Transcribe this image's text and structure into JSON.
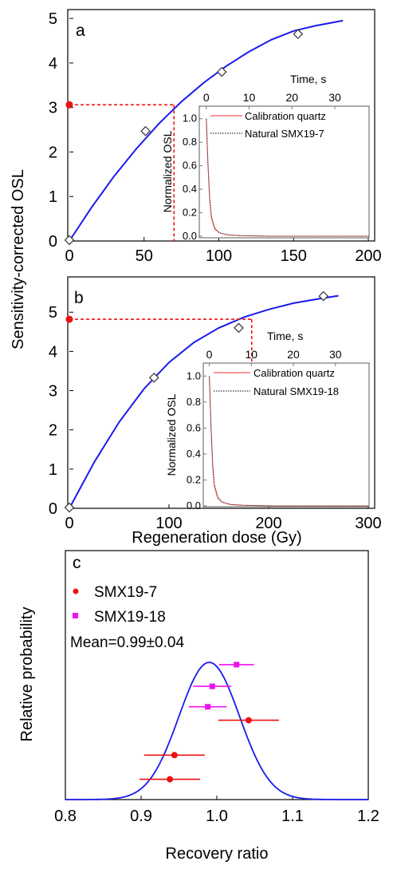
{
  "colors": {
    "curve": "#1a1aee",
    "dose_marker": "#ee1111",
    "red_series": "#ee1111",
    "magenta_series": "#ee11ee",
    "gaussian": "#1a1aee",
    "inset_box": "#777777"
  },
  "chart_data": [
    {
      "panel": "a",
      "type": "line",
      "ylabel": "Sensitivity-corrected OSL",
      "xlim": [
        0,
        200
      ],
      "ylim": [
        0,
        5.2
      ],
      "x_ticks": [
        0,
        50,
        100,
        150,
        200
      ],
      "y_ticks": [
        0,
        1,
        2,
        3,
        4,
        5
      ],
      "growth_curve": {
        "x": [
          0,
          15,
          30,
          45,
          60,
          75,
          90,
          105,
          120,
          135,
          150,
          165,
          183
        ],
        "y": [
          0,
          0.76,
          1.46,
          2.08,
          2.64,
          3.13,
          3.56,
          3.93,
          4.25,
          4.52,
          4.72,
          4.84,
          4.95
        ]
      },
      "regeneration_points": {
        "x": [
          0,
          51,
          102,
          153
        ],
        "y": [
          0.02,
          2.47,
          3.8,
          4.65
        ]
      },
      "natural_signal": 3.06,
      "equivalent_dose": 70,
      "inset": {
        "xlabel": "Time, s",
        "ylabel": "Normalized OSL",
        "xlim": [
          -2,
          38
        ],
        "ylim": [
          0,
          1.1
        ],
        "x_ticks": [
          0,
          10,
          20,
          30
        ],
        "y_ticks": [
          0.0,
          0.2,
          0.4,
          0.6,
          0.8,
          1.0
        ],
        "legend": [
          "Calibration quartz",
          "Natural SMX19-7"
        ],
        "curves": [
          {
            "name": "Calibration quartz",
            "t": [
              0,
              0.4,
              0.8,
              1.2,
              2,
              3,
              5,
              8,
              15,
              25,
              38
            ],
            "v": [
              1.0,
              0.6,
              0.3,
              0.15,
              0.06,
              0.03,
              0.01,
              0.005,
              0,
              0,
              0
            ]
          },
          {
            "name": "Natural SMX19-7",
            "t": [
              0,
              0.4,
              0.8,
              1.2,
              2,
              3,
              5,
              8,
              15,
              25,
              38
            ],
            "v": [
              1.0,
              0.62,
              0.32,
              0.17,
              0.07,
              0.03,
              0.012,
              0.005,
              0,
              0,
              0
            ]
          }
        ]
      }
    },
    {
      "panel": "b",
      "type": "line",
      "xlabel": "Regeneration dose (Gy)",
      "xlim": [
        0,
        300
      ],
      "ylim": [
        0,
        5.9
      ],
      "x_ticks": [
        0,
        100,
        200,
        300
      ],
      "y_ticks": [
        0,
        1,
        2,
        3,
        4,
        5
      ],
      "growth_curve": {
        "x": [
          0,
          25,
          50,
          75,
          100,
          125,
          150,
          175,
          200,
          225,
          250,
          270
        ],
        "y": [
          0,
          1.18,
          2.2,
          3.05,
          3.72,
          4.23,
          4.6,
          4.87,
          5.07,
          5.23,
          5.34,
          5.42
        ]
      },
      "regeneration_points": {
        "x": [
          0,
          85,
          170,
          255
        ],
        "y": [
          0.02,
          3.33,
          4.6,
          5.41
        ]
      },
      "natural_signal": 4.82,
      "equivalent_dose": 183,
      "inset": {
        "xlabel": "Time, s",
        "ylabel": "Normalized OSL",
        "xlim": [
          -2,
          38
        ],
        "ylim": [
          0,
          1.1
        ],
        "x_ticks": [
          0,
          10,
          20,
          30
        ],
        "y_ticks": [
          0.0,
          0.2,
          0.4,
          0.6,
          0.8,
          1.0
        ],
        "legend": [
          "Calibration quartz",
          "Natural SMX19-18"
        ],
        "curves": [
          {
            "name": "Calibration quartz",
            "t": [
              0,
              0.4,
              0.8,
              1.2,
              2,
              3,
              5,
              8,
              15,
              25,
              38
            ],
            "v": [
              1.0,
              0.6,
              0.3,
              0.15,
              0.06,
              0.03,
              0.01,
              0.005,
              0,
              0,
              0
            ]
          },
          {
            "name": "Natural SMX19-18",
            "t": [
              0,
              0.4,
              0.8,
              1.2,
              2,
              3,
              5,
              8,
              15,
              25,
              38
            ],
            "v": [
              1.0,
              0.63,
              0.33,
              0.17,
              0.07,
              0.03,
              0.012,
              0.005,
              0,
              0,
              0
            ]
          }
        ]
      }
    },
    {
      "panel": "c",
      "type": "scatter",
      "xlabel": "Recovery ratio",
      "ylabel": "Relative probability",
      "xlim": [
        0.8,
        1.2
      ],
      "x_ticks": [
        0.8,
        0.9,
        1.0,
        1.1,
        1.2
      ],
      "legend": [
        "SMX19-7",
        "SMX19-18"
      ],
      "annotation": "Mean=0.99±0.04",
      "series": [
        {
          "name": "SMX19-7",
          "points": [
            {
              "x": 1.042,
              "err": 0.04,
              "level": 0.578
            },
            {
              "x": 0.944,
              "err": 0.04,
              "level": 0.324
            },
            {
              "x": 0.938,
              "err": 0.04,
              "level": 0.148
            }
          ]
        },
        {
          "name": "SMX19-18",
          "points": [
            {
              "x": 1.026,
              "err": 0.023,
              "level": 0.983
            },
            {
              "x": 0.994,
              "err": 0.025,
              "level": 0.825
            },
            {
              "x": 0.988,
              "err": 0.025,
              "level": 0.676
            }
          ]
        }
      ],
      "gaussian": {
        "mean": 0.99,
        "sd": 0.04
      }
    }
  ]
}
